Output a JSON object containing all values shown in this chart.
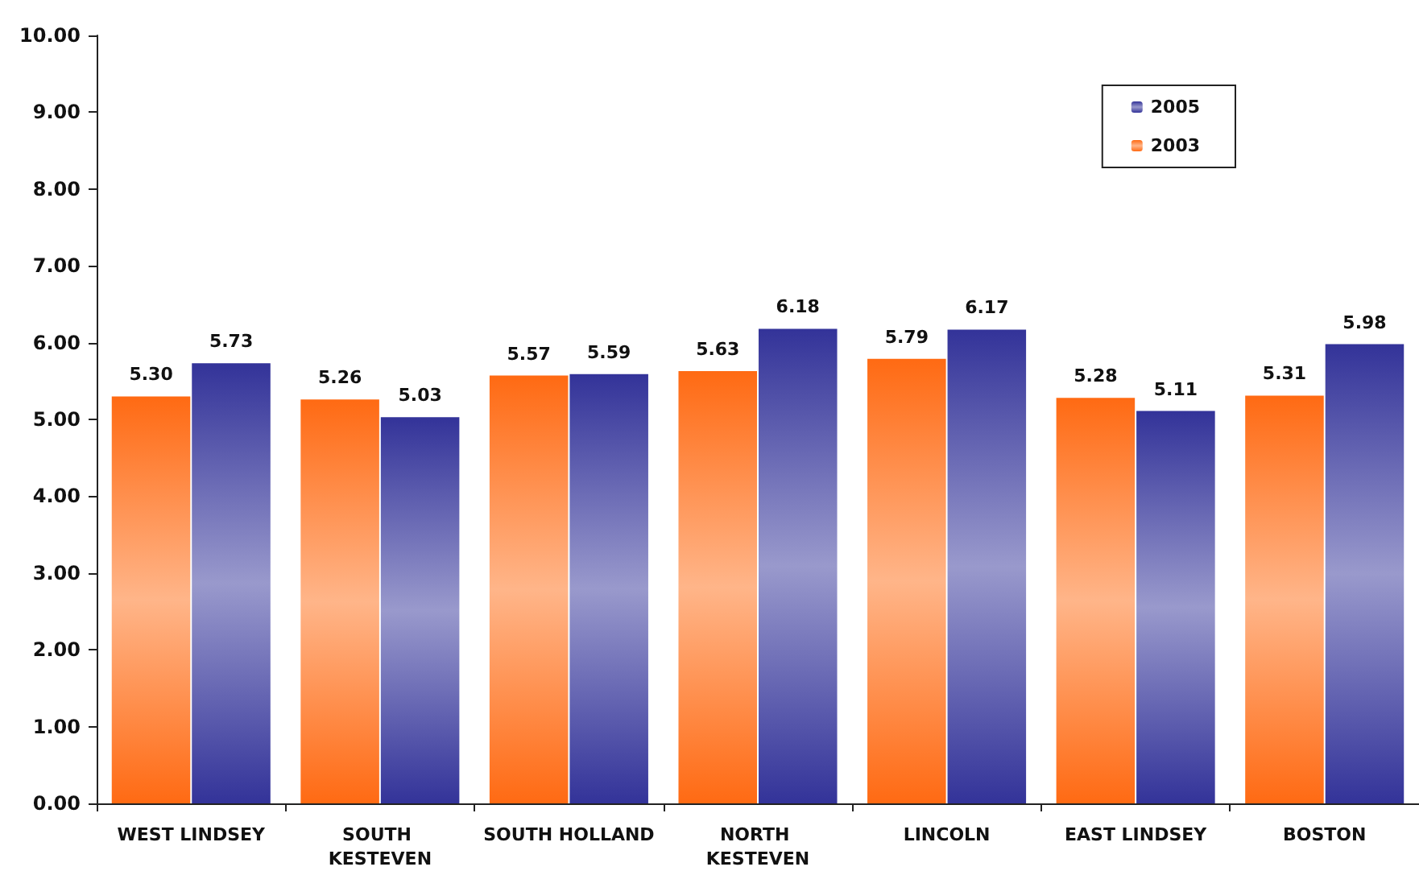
{
  "chart_data": {
    "type": "bar",
    "categories": [
      "WEST LINDSEY",
      "SOUTH KESTEVEN",
      "SOUTH HOLLAND",
      "NORTH KESTEVEN",
      "LINCOLN",
      "EAST LINDSEY",
      "BOSTON"
    ],
    "series": [
      {
        "name": "2003",
        "color": "#ff6a13",
        "values": [
          5.3,
          5.26,
          5.57,
          5.63,
          5.79,
          5.28,
          5.31
        ],
        "value_labels": [
          "5.30",
          "5.26",
          "5.57",
          "5.63",
          "5.79",
          "5.28",
          "5.31"
        ]
      },
      {
        "name": "2005",
        "color": "#333399",
        "values": [
          5.73,
          5.03,
          5.59,
          6.18,
          6.17,
          5.11,
          5.98
        ],
        "value_labels": [
          "5.73",
          "5.03",
          "5.59",
          "6.18",
          "6.17",
          "5.11",
          "5.98"
        ]
      }
    ],
    "ylim": [
      0,
      10
    ],
    "yticks": [
      {
        "value": 0,
        "label": "0.00"
      },
      {
        "value": 1,
        "label": "1.00"
      },
      {
        "value": 2,
        "label": "2.00"
      },
      {
        "value": 3,
        "label": "3.00"
      },
      {
        "value": 4,
        "label": "4.00"
      },
      {
        "value": 5,
        "label": "5.00"
      },
      {
        "value": 6,
        "label": "6.00"
      },
      {
        "value": 7,
        "label": "7.00"
      },
      {
        "value": 8,
        "label": "8.00"
      },
      {
        "value": 9,
        "label": "9.00"
      },
      {
        "value": 10,
        "label": "10.00"
      }
    ],
    "grid": false,
    "legend": "top right"
  }
}
